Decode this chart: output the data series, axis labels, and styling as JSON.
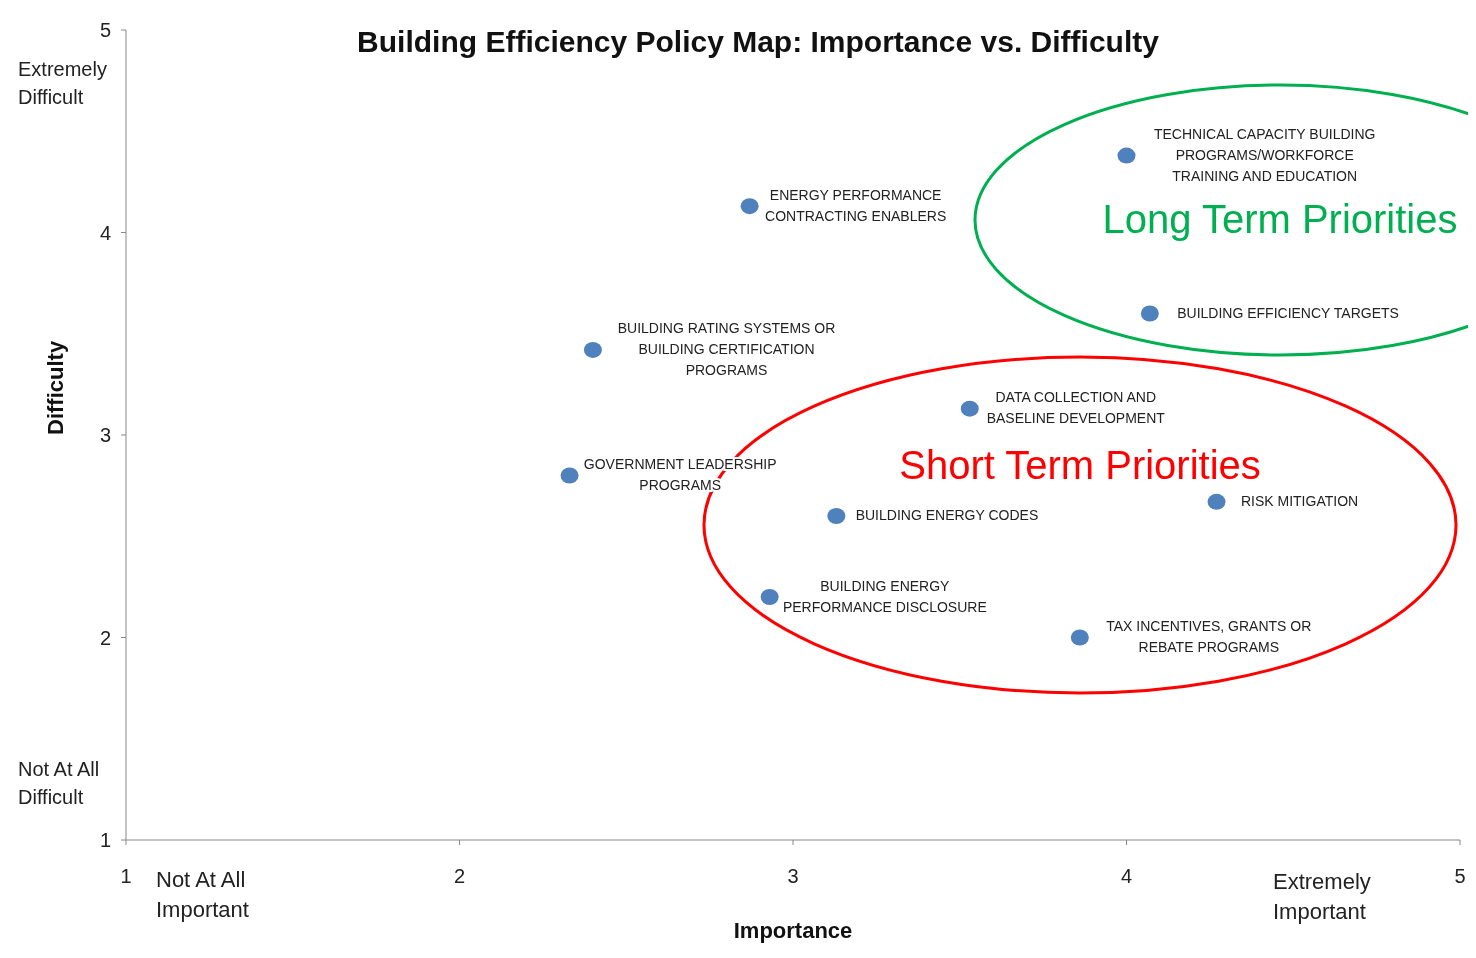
{
  "chart_data": {
    "type": "scatter",
    "title": "Building Efficiency Policy Map: Importance vs. Difficulty",
    "xlabel": "Importance",
    "ylabel": "Difficulty",
    "x": [
      4.0,
      2.87,
      4.07,
      2.4,
      3.53,
      2.33,
      4.27,
      3.13,
      2.93,
      3.86
    ],
    "series": [
      {
        "color": "#4f81bd",
        "values": [
          4.38,
          4.13,
          3.6,
          3.42,
          3.13,
          2.8,
          2.67,
          2.6,
          2.2,
          2.0
        ]
      }
    ],
    "xlim": [
      1,
      5
    ],
    "ylim": [
      1,
      5
    ],
    "xticks": [
      1,
      2,
      3,
      4,
      5
    ],
    "yticks": [
      1,
      2,
      3,
      4,
      5
    ],
    "grid": false,
    "legend": false,
    "marker": "circle",
    "annotations": [
      "Long Term Priorities",
      "Short Term Priorities",
      "Extremely\nDifficult",
      "Not At All\nDifficult",
      "Not At All\nImportant",
      "Extremely\nImportant",
      {
        "text": "TECHNICAL CAPACITY BUILDING\nPROGRAMS/WORKFORCE\nTRAINING AND EDUCATION",
        "x": 4.0,
        "y": 4.38
      },
      {
        "text": "ENERGY PERFORMANCE\nCONTRACTING ENABLERS",
        "x": 2.87,
        "y": 4.13
      },
      {
        "text": "BUILDING EFFICIENCY TARGETS",
        "x": 4.07,
        "y": 3.6
      },
      {
        "text": "BUILDING RATING SYSTEMS OR\nBUILDING CERTIFICATION\nPROGRAMS",
        "x": 2.4,
        "y": 3.42
      },
      {
        "text": "DATA COLLECTION AND\nBASELINE DEVELOPMENT",
        "x": 3.53,
        "y": 3.13
      },
      {
        "text": "GOVERNMENT LEADERSHIP\nPROGRAMS",
        "x": 2.33,
        "y": 2.8
      },
      {
        "text": "RISK MITIGATION",
        "x": 4.27,
        "y": 2.67
      },
      {
        "text": "BUILDING ENERGY CODES",
        "x": 3.13,
        "y": 2.6
      },
      {
        "text": "BUILDING ENERGY\nPERFORMANCE DISCLOSURE",
        "x": 2.93,
        "y": 2.2
      },
      {
        "text": "TAX INCENTIVES, GRANTS OR\nREBATE PROGRAMS",
        "x": 3.86,
        "y": 2.0
      }
    ]
  }
}
